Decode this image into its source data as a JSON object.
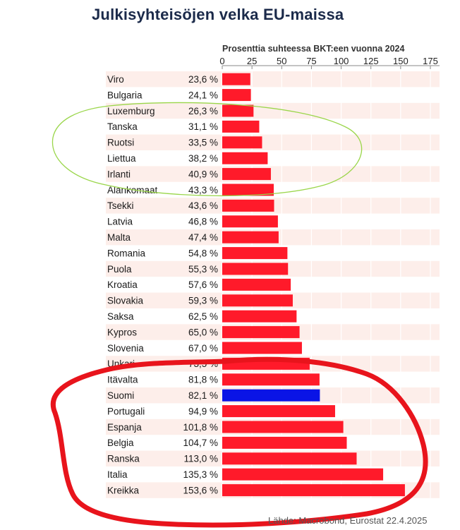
{
  "chart_data": {
    "type": "bar",
    "orientation": "horizontal",
    "title": "Julkisyhteisöjen velka EU-maissa",
    "subtitle": "Prosenttia suhteessa BKT:een vuonna 2024",
    "source": "Lähde: Macrobond, Eurostat 22.4.2025",
    "xlim": [
      0,
      175
    ],
    "ticks": [
      0,
      25,
      50,
      75,
      100,
      125,
      150,
      175
    ],
    "categories": [
      "Viro",
      "Bulgaria",
      "Luxemburg",
      "Tanska",
      "Ruotsi",
      "Liettua",
      "Irlanti",
      "Alankomaat",
      "Tsekki",
      "Latvia",
      "Malta",
      "Romania",
      "Puola",
      "Kroatia",
      "Slovakia",
      "Saksa",
      "Kypros",
      "Slovenia",
      "Unkari",
      "Itävalta",
      "Suomi",
      "Portugali",
      "Espanja",
      "Belgia",
      "Ranska",
      "Italia",
      "Kreikka"
    ],
    "values": [
      23.6,
      24.1,
      26.3,
      31.1,
      33.5,
      38.2,
      40.9,
      43.3,
      43.6,
      46.8,
      47.4,
      54.8,
      55.3,
      57.6,
      59.3,
      62.5,
      65.0,
      67.0,
      73.5,
      81.8,
      82.1,
      94.9,
      101.8,
      104.7,
      113.0,
      135.3,
      153.6
    ],
    "value_labels": [
      "23,6 %",
      "24,1 %",
      "26,3 %",
      "31,1 %",
      "33,5 %",
      "38,2 %",
      "40,9 %",
      "43,3 %",
      "43,6 %",
      "46,8 %",
      "47,4 %",
      "54,8 %",
      "55,3 %",
      "57,6 %",
      "59,3 %",
      "62,5 %",
      "65,0 %",
      "67,0 %",
      "73,5 %",
      "81,8 %",
      "82,1 %",
      "94,9 %",
      "101,8 %",
      "104,7 %",
      "113,0 %",
      "135,3 %",
      "153,6 %"
    ],
    "highlight_category": "Suomi",
    "colors": {
      "bar": "#ff1a2a",
      "highlight": "#0a14e6",
      "row_band": "#fdeeea",
      "annotation_green": "#9ad64a",
      "annotation_red": "#e8141c"
    }
  }
}
